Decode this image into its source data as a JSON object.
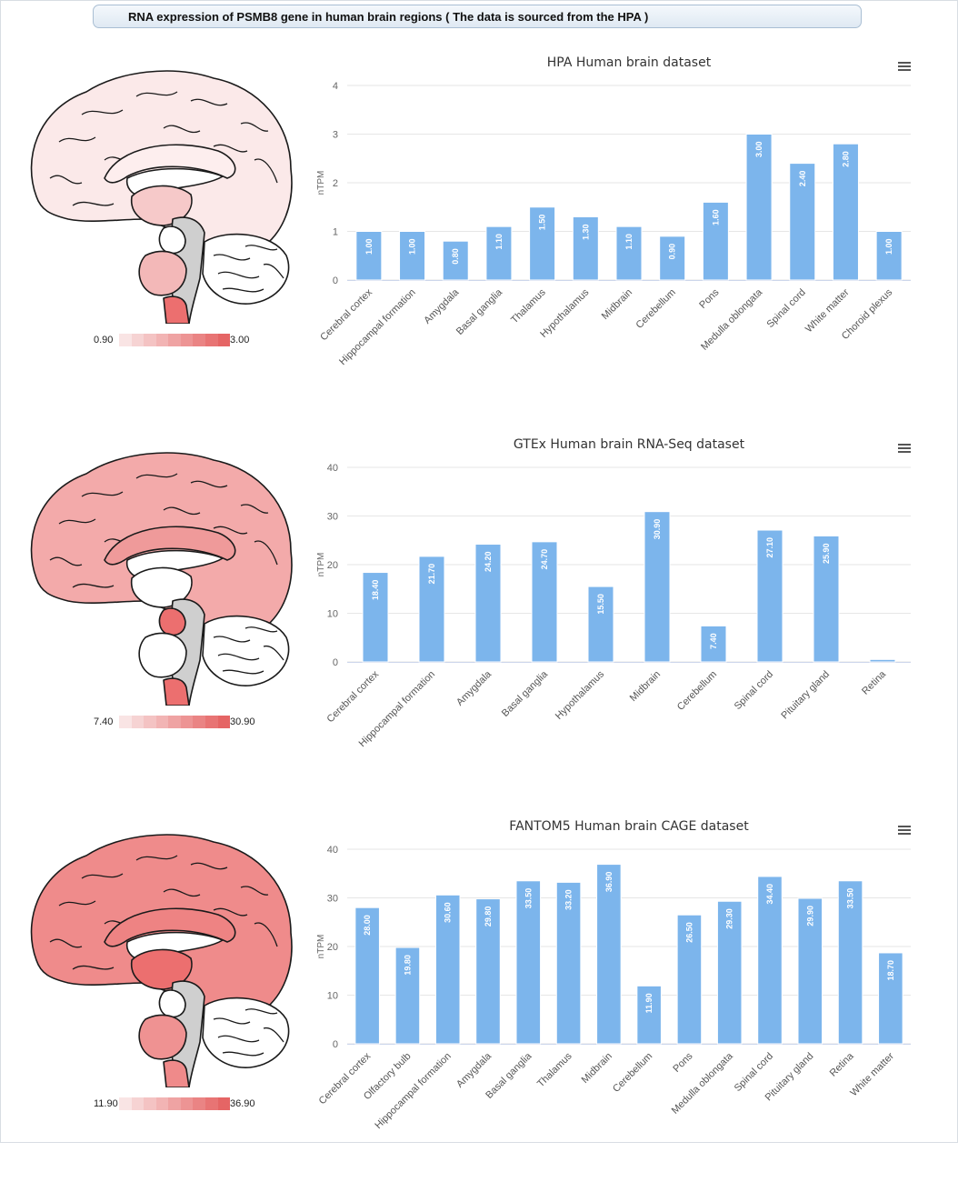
{
  "header": {
    "title": "RNA expression of PSMB8 gene in human brain regions ( The data is sourced from the HPA )"
  },
  "colors": {
    "bar": "#7cb5ec",
    "grid": "#e6e6e6",
    "legend_ramp": [
      "#f9e4e4",
      "#f6d3d3",
      "#f4c3c3",
      "#f2b4b4",
      "#efa3a3",
      "#ed9494",
      "#ea8484",
      "#e87474",
      "#e56565"
    ]
  },
  "icons": {
    "menu": "hamburger-menu-icon"
  },
  "sections": [
    {
      "legend": {
        "min": "0.90",
        "max": "3.00"
      },
      "brain_fill": {
        "cortex": "#fbe9e9",
        "corpus_callosum": "#fdeeee",
        "thalamus": "#f6c9c9",
        "pons": "#f3b8b8",
        "medulla": "#ec6f6f",
        "midbrain": "#ffffff"
      }
    },
    {
      "legend": {
        "min": "7.40",
        "max": "30.90"
      },
      "brain_fill": {
        "cortex": "#f3aaaa",
        "corpus_callosum": "#ef9a9a",
        "thalamus": "#ffffff",
        "pons": "#ffffff",
        "medulla": "#ec6f6f",
        "midbrain": "#ec6f6f"
      }
    },
    {
      "legend": {
        "min": "11.90",
        "max": "36.90"
      },
      "brain_fill": {
        "cortex": "#ef8b8b",
        "corpus_callosum": "#ee8383",
        "thalamus": "#ec6f6f",
        "pons": "#ef9292",
        "medulla": "#ef8a8a",
        "midbrain": "#ffffff"
      }
    }
  ],
  "chart_data": [
    {
      "type": "bar",
      "title": "HPA Human brain dataset",
      "ylabel": "nTPM",
      "ylim": [
        0,
        4
      ],
      "yticks": [
        0,
        1,
        2,
        3,
        4
      ],
      "categories": [
        "Cerebral cortex",
        "Hippocampal formation",
        "Amygdala",
        "Basal ganglia",
        "Thalamus",
        "Hypothalamus",
        "Midbrain",
        "Cerebellum",
        "Pons",
        "Medulla oblongata",
        "Spinal cord",
        "White matter",
        "Choroid plexus"
      ],
      "values": [
        1.0,
        1.0,
        0.8,
        1.1,
        1.5,
        1.3,
        1.1,
        0.9,
        1.6,
        3.0,
        2.4,
        2.8,
        1.0
      ],
      "labels": [
        "1.00",
        "1.00",
        "0.80",
        "1.10",
        "1.50",
        "1.30",
        "1.10",
        "0.90",
        "1.60",
        "3.00",
        "2.40",
        "2.80",
        "1.00"
      ]
    },
    {
      "type": "bar",
      "title": "GTEx Human brain RNA-Seq dataset",
      "ylabel": "nTPM",
      "ylim": [
        0,
        40
      ],
      "yticks": [
        0,
        10,
        20,
        30,
        40
      ],
      "categories": [
        "Cerebral cortex",
        "Hippocampal formation",
        "Amygdala",
        "Basal ganglia",
        "Hypothalamus",
        "Midbrain",
        "Cerebellum",
        "Spinal cord",
        "Pituitary gland",
        "Retina"
      ],
      "values": [
        18.4,
        21.7,
        24.2,
        24.7,
        15.5,
        30.9,
        7.4,
        27.1,
        25.9,
        0.5
      ],
      "labels": [
        "18.40",
        "21.70",
        "24.20",
        "24.70",
        "15.50",
        "30.90",
        "7.40",
        "27.10",
        "25.90",
        ""
      ]
    },
    {
      "type": "bar",
      "title": "FANTOM5 Human brain CAGE dataset",
      "ylabel": "nTPM",
      "ylim": [
        0,
        40
      ],
      "yticks": [
        0,
        10,
        20,
        30,
        40
      ],
      "categories": [
        "Cerebral cortex",
        "Olfactory bulb",
        "Hippocampal formation",
        "Amygdala",
        "Basal ganglia",
        "Thalamus",
        "Midbrain",
        "Cerebellum",
        "Pons",
        "Medulla oblongata",
        "Spinal cord",
        "Pituitary gland",
        "Retina",
        "White matter"
      ],
      "values": [
        28.0,
        19.8,
        30.6,
        29.8,
        33.5,
        33.2,
        36.9,
        11.9,
        26.5,
        29.3,
        34.4,
        29.9,
        33.5,
        18.7
      ],
      "labels": [
        "28.00",
        "19.80",
        "30.60",
        "29.80",
        "33.50",
        "33.20",
        "36.90",
        "11.90",
        "26.50",
        "29.30",
        "34.40",
        "29.90",
        "33.50",
        "18.70"
      ]
    }
  ]
}
